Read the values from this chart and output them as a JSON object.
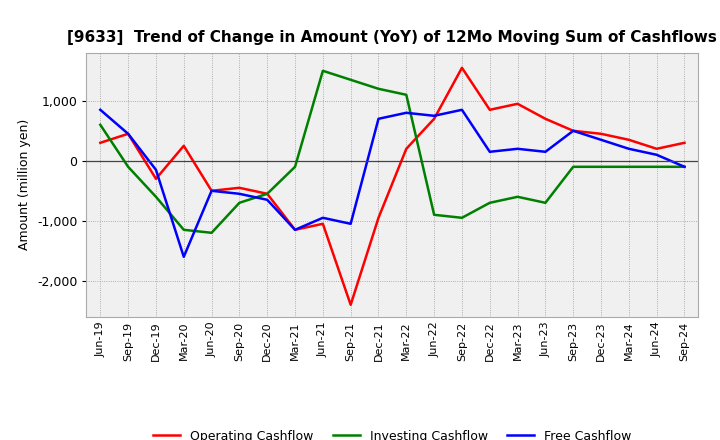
{
  "title": "[9633]  Trend of Change in Amount (YoY) of 12Mo Moving Sum of Cashflows",
  "ylabel": "Amount (million yen)",
  "x_labels": [
    "Jun-19",
    "Sep-19",
    "Dec-19",
    "Mar-20",
    "Jun-20",
    "Sep-20",
    "Dec-20",
    "Mar-21",
    "Jun-21",
    "Sep-21",
    "Dec-21",
    "Mar-22",
    "Jun-22",
    "Sep-22",
    "Dec-22",
    "Mar-23",
    "Jun-23",
    "Sep-23",
    "Dec-23",
    "Mar-24",
    "Jun-24",
    "Sep-24"
  ],
  "operating": [
    300,
    450,
    -300,
    250,
    -500,
    -450,
    -550,
    -1150,
    -1050,
    -2400,
    -950,
    200,
    700,
    1550,
    850,
    950,
    700,
    500,
    450,
    350,
    200,
    300
  ],
  "investing": [
    600,
    -100,
    -600,
    -1150,
    -1200,
    -700,
    -550,
    -100,
    1500,
    1350,
    1200,
    1100,
    -900,
    -950,
    -700,
    -600,
    -700,
    -100,
    -100,
    -100,
    -100,
    -100
  ],
  "free": [
    850,
    450,
    -150,
    -1600,
    -500,
    -550,
    -650,
    -1150,
    -950,
    -1050,
    700,
    800,
    750,
    850,
    150,
    200,
    150,
    500,
    350,
    200,
    100,
    -100
  ],
  "op_color": "#ff0000",
  "inv_color": "#008000",
  "free_color": "#0000ff",
  "ylim": [
    -2600,
    1800
  ],
  "yticks": [
    -2000,
    -1000,
    0,
    1000
  ],
  "background_color": "#ffffff",
  "grid_color": "#999999",
  "title_fontsize": 11,
  "legend_fontsize": 9
}
